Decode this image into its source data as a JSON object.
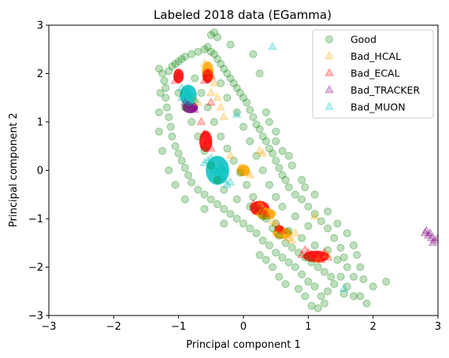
{
  "chart_data": {
    "type": "scatter",
    "title": "Labeled 2018 data (EGamma)",
    "xlabel": "Principal component 1",
    "ylabel": "Principal component 2",
    "xlim": [
      -3,
      3
    ],
    "ylim": [
      -3,
      3
    ],
    "xticks": [
      -3,
      -2,
      -1,
      0,
      1,
      2,
      3
    ],
    "yticks": [
      -3,
      -2,
      -1,
      0,
      1,
      2,
      3
    ],
    "x_tick_labels": [
      "−3",
      "−2",
      "−1",
      "0",
      "1",
      "2",
      "3"
    ],
    "y_tick_labels": [
      "−3",
      "−2",
      "−1",
      "0",
      "1",
      "2",
      "3"
    ],
    "grid": false,
    "legend_position": "top-right",
    "series": [
      {
        "name": "Good",
        "marker": "circle",
        "color": "#008000",
        "alpha": 0.25,
        "points": [
          [
            -1.15,
            2.05
          ],
          [
            -1.1,
            2.15
          ],
          [
            -1.05,
            2.2
          ],
          [
            -1.0,
            2.25
          ],
          [
            -0.95,
            2.3
          ],
          [
            -0.9,
            2.35
          ],
          [
            -0.8,
            2.4
          ],
          [
            -0.7,
            2.45
          ],
          [
            -0.6,
            2.5
          ],
          [
            -0.55,
            2.55
          ],
          [
            -0.5,
            2.45
          ],
          [
            -0.45,
            2.4
          ],
          [
            -0.4,
            2.3
          ],
          [
            -0.35,
            2.2
          ],
          [
            -0.3,
            2.1
          ],
          [
            -0.25,
            2.0
          ],
          [
            -0.2,
            1.9
          ],
          [
            -0.15,
            1.8
          ],
          [
            -0.1,
            1.7
          ],
          [
            -0.05,
            1.6
          ],
          [
            0.0,
            1.5
          ],
          [
            0.05,
            1.4
          ],
          [
            0.1,
            1.25
          ],
          [
            0.15,
            1.1
          ],
          [
            0.2,
            0.95
          ],
          [
            0.25,
            0.85
          ],
          [
            0.3,
            0.7
          ],
          [
            0.35,
            0.6
          ],
          [
            0.4,
            0.45
          ],
          [
            0.45,
            0.35
          ],
          [
            0.5,
            0.2
          ],
          [
            0.55,
            0.05
          ],
          [
            0.6,
            -0.1
          ],
          [
            0.65,
            -0.2
          ],
          [
            0.7,
            -0.35
          ],
          [
            0.8,
            -0.5
          ],
          [
            0.9,
            -0.6
          ],
          [
            1.0,
            -0.75
          ],
          [
            1.1,
            -0.9
          ],
          [
            1.2,
            -1.05
          ],
          [
            1.3,
            -1.2
          ],
          [
            1.4,
            -1.4
          ],
          [
            1.5,
            -1.6
          ],
          [
            1.55,
            -1.8
          ],
          [
            1.6,
            -2.0
          ],
          [
            1.5,
            -2.2
          ],
          [
            1.4,
            -2.35
          ],
          [
            1.3,
            -2.5
          ],
          [
            1.2,
            -2.6
          ],
          [
            1.1,
            -2.4
          ],
          [
            1.0,
            -2.3
          ],
          [
            0.9,
            -2.15
          ],
          [
            0.8,
            -2.0
          ],
          [
            0.7,
            -1.9
          ],
          [
            0.6,
            -1.8
          ],
          [
            0.5,
            -1.7
          ],
          [
            0.4,
            -1.55
          ],
          [
            0.3,
            -1.45
          ],
          [
            0.2,
            -1.3
          ],
          [
            0.1,
            -1.2
          ],
          [
            0.0,
            -1.1
          ],
          [
            -0.1,
            -1.0
          ],
          [
            -0.2,
            -0.9
          ],
          [
            -0.3,
            -0.8
          ],
          [
            -0.4,
            -0.7
          ],
          [
            -0.5,
            -0.6
          ],
          [
            -0.6,
            -0.5
          ],
          [
            -0.7,
            -0.4
          ],
          [
            -0.8,
            -0.25
          ],
          [
            -0.85,
            -0.1
          ],
          [
            -0.9,
            0.05
          ],
          [
            -0.95,
            0.2
          ],
          [
            -1.0,
            0.35
          ],
          [
            -1.05,
            0.5
          ],
          [
            -1.1,
            0.7
          ],
          [
            -1.12,
            0.9
          ],
          [
            -1.15,
            1.1
          ],
          [
            -1.18,
            1.3
          ],
          [
            -1.2,
            1.5
          ],
          [
            -1.2,
            1.7
          ],
          [
            -1.22,
            1.85
          ],
          [
            -1.25,
            2.0
          ],
          [
            -0.75,
            1.9
          ],
          [
            -0.65,
            1.6
          ],
          [
            -0.55,
            1.3
          ],
          [
            -0.45,
            1.0
          ],
          [
            -0.35,
            0.7
          ],
          [
            -0.25,
            0.45
          ],
          [
            -0.15,
            0.2
          ],
          [
            -0.05,
            -0.05
          ],
          [
            0.05,
            -0.3
          ],
          [
            0.15,
            -0.55
          ],
          [
            0.25,
            -0.8
          ],
          [
            0.35,
            -1.0
          ],
          [
            0.45,
            -1.2
          ],
          [
            0.55,
            -1.35
          ],
          [
            0.65,
            -1.5
          ],
          [
            0.75,
            -1.6
          ],
          [
            0.85,
            -1.7
          ],
          [
            0.95,
            -1.8
          ],
          [
            1.05,
            -1.9
          ],
          [
            1.15,
            -2.0
          ],
          [
            1.25,
            -2.1
          ],
          [
            1.35,
            -2.2
          ],
          [
            -0.5,
            2.8
          ],
          [
            -0.45,
            2.85
          ],
          [
            -0.4,
            2.75
          ],
          [
            -0.2,
            2.6
          ],
          [
            0.15,
            2.4
          ],
          [
            0.25,
            2.0
          ],
          [
            0.4,
            1.0
          ],
          [
            0.35,
            1.2
          ],
          [
            0.5,
            0.8
          ],
          [
            0.7,
            0.3
          ],
          [
            0.9,
            -0.2
          ],
          [
            1.1,
            -0.5
          ],
          [
            1.3,
            -0.85
          ],
          [
            1.45,
            -1.1
          ],
          [
            1.6,
            -1.3
          ],
          [
            1.7,
            -1.55
          ],
          [
            1.75,
            -1.75
          ],
          [
            1.8,
            -2.0
          ],
          [
            1.7,
            -2.2
          ],
          [
            1.85,
            -2.25
          ],
          [
            2.0,
            -2.4
          ],
          [
            2.2,
            -2.3
          ],
          [
            1.9,
            -2.75
          ],
          [
            1.8,
            -2.6
          ],
          [
            1.55,
            -2.55
          ],
          [
            1.25,
            -2.75
          ],
          [
            1.15,
            -2.85
          ],
          [
            1.05,
            -2.8
          ],
          [
            0.95,
            -2.6
          ],
          [
            0.85,
            -2.45
          ],
          [
            0.65,
            -2.35
          ],
          [
            0.55,
            -2.2
          ],
          [
            0.45,
            -2.0
          ],
          [
            0.35,
            -1.85
          ],
          [
            0.25,
            -1.75
          ],
          [
            -0.3,
            -1.1
          ],
          [
            -0.6,
            -0.8
          ],
          [
            -0.9,
            -0.6
          ],
          [
            -1.05,
            -0.3
          ],
          [
            -1.15,
            0.0
          ],
          [
            -1.25,
            0.4
          ],
          [
            -1.3,
            0.8
          ],
          [
            -1.3,
            1.2
          ],
          [
            -1.28,
            1.6
          ],
          [
            -1.3,
            2.1
          ],
          [
            -1.0,
            1.6
          ],
          [
            -0.9,
            1.3
          ],
          [
            -0.8,
            1.0
          ],
          [
            -0.7,
            0.7
          ],
          [
            -0.6,
            0.4
          ],
          [
            -0.5,
            0.1
          ],
          [
            -0.4,
            -0.2
          ],
          [
            -0.3,
            -0.4
          ],
          [
            -0.1,
            -0.6
          ],
          [
            0.1,
            -0.75
          ],
          [
            0.3,
            -0.95
          ],
          [
            0.5,
            -1.1
          ],
          [
            0.7,
            -1.25
          ],
          [
            0.9,
            -1.4
          ],
          [
            1.1,
            -1.55
          ],
          [
            1.3,
            -1.65
          ],
          [
            1.45,
            -1.85
          ],
          [
            1.6,
            -2.4
          ],
          [
            1.7,
            -2.6
          ],
          [
            0.6,
            0.4
          ],
          [
            0.75,
            0.1
          ],
          [
            0.95,
            -0.35
          ],
          [
            0.5,
            0.6
          ],
          [
            -0.35,
            1.8
          ],
          [
            -0.25,
            1.5
          ],
          [
            -0.1,
            1.2
          ],
          [
            0.0,
            0.9
          ],
          [
            0.1,
            0.6
          ],
          [
            0.2,
            0.3
          ],
          [
            0.3,
            0.0
          ],
          [
            0.4,
            -0.3
          ],
          [
            0.5,
            -0.55
          ],
          [
            0.6,
            -0.75
          ],
          [
            0.8,
            -0.95
          ],
          [
            1.0,
            -1.15
          ]
        ]
      },
      {
        "name": "Bad_HCAL",
        "marker": "triangle",
        "color": "#FFA500",
        "alpha": 0.25,
        "points": [
          [
            -0.6,
            2.2
          ],
          [
            -0.55,
            2.05
          ],
          [
            -0.5,
            1.95
          ],
          [
            -0.45,
            1.8
          ],
          [
            -0.4,
            1.5
          ],
          [
            -0.35,
            1.3
          ],
          [
            -0.3,
            1.1
          ],
          [
            -0.05,
            0.05
          ],
          [
            0.0,
            0.0
          ],
          [
            0.05,
            -0.05
          ],
          [
            0.25,
            -0.7
          ],
          [
            0.3,
            -0.8
          ],
          [
            0.35,
            -0.85
          ],
          [
            0.4,
            -0.9
          ],
          [
            0.5,
            -1.1
          ],
          [
            0.55,
            -1.2
          ],
          [
            0.6,
            -1.3
          ],
          [
            0.65,
            -1.35
          ],
          [
            0.7,
            -1.4
          ],
          [
            0.75,
            -1.45
          ],
          [
            0.8,
            -1.3
          ],
          [
            0.45,
            -1.05
          ],
          [
            -0.5,
            1.6
          ],
          [
            0.25,
            0.4
          ],
          [
            0.3,
            0.35
          ],
          [
            1.1,
            -0.95
          ],
          [
            -0.75,
            1.45
          ],
          [
            -0.7,
            1.4
          ],
          [
            -0.2,
            0.3
          ],
          [
            0.1,
            -0.1
          ],
          [
            1.15,
            -1.85
          ],
          [
            1.3,
            -1.75
          ]
        ]
      },
      {
        "name": "Bad_ECAL",
        "marker": "triangle",
        "color": "#FF0000",
        "alpha": 0.25,
        "points": [
          [
            -1.0,
            1.95
          ],
          [
            -1.05,
            1.85
          ],
          [
            -0.55,
            2.0
          ],
          [
            -0.5,
            1.95
          ],
          [
            -0.6,
            1.85
          ],
          [
            -0.65,
            1.0
          ],
          [
            -0.6,
            0.75
          ],
          [
            -0.55,
            0.6
          ],
          [
            -0.6,
            0.5
          ],
          [
            -0.5,
            0.45
          ],
          [
            0.15,
            -0.7
          ],
          [
            0.2,
            -0.75
          ],
          [
            0.25,
            -0.8
          ],
          [
            0.3,
            -0.85
          ],
          [
            0.35,
            -0.9
          ],
          [
            0.2,
            -0.85
          ],
          [
            0.55,
            -1.2
          ],
          [
            0.6,
            -1.25
          ],
          [
            1.0,
            -1.7
          ],
          [
            1.05,
            -1.75
          ],
          [
            1.1,
            -1.8
          ],
          [
            1.15,
            -1.75
          ],
          [
            1.2,
            -1.85
          ],
          [
            1.25,
            -1.7
          ],
          [
            1.3,
            -1.8
          ],
          [
            0.95,
            -1.65
          ],
          [
            -0.5,
            1.4
          ],
          [
            0.9,
            -1.75
          ]
        ]
      },
      {
        "name": "Bad_TRACKER",
        "marker": "triangle",
        "color": "#800080",
        "alpha": 0.25,
        "points": [
          [
            2.8,
            -1.3
          ],
          [
            2.85,
            -1.35
          ],
          [
            2.9,
            -1.4
          ],
          [
            2.95,
            -1.45
          ],
          [
            2.82,
            -1.25
          ],
          [
            2.88,
            -1.3
          ],
          [
            3.0,
            -1.4
          ],
          [
            2.92,
            -1.5
          ],
          [
            -0.85,
            1.35
          ],
          [
            -0.8,
            1.3
          ],
          [
            -0.9,
            1.4
          ],
          [
            -0.75,
            1.25
          ]
        ]
      },
      {
        "name": "Bad_MUON",
        "marker": "triangle",
        "color": "#00BFBF",
        "alpha": 0.25,
        "points": [
          [
            0.45,
            2.55
          ],
          [
            -0.95,
            1.7
          ],
          [
            -0.9,
            1.6
          ],
          [
            -0.85,
            1.55
          ],
          [
            -0.8,
            1.5
          ],
          [
            -0.75,
            1.45
          ],
          [
            -0.85,
            1.65
          ],
          [
            -0.95,
            1.5
          ],
          [
            -0.55,
            0.2
          ],
          [
            -0.5,
            0.1
          ],
          [
            -0.45,
            0.0
          ],
          [
            -0.4,
            -0.05
          ],
          [
            -0.35,
            -0.15
          ],
          [
            -0.3,
            -0.2
          ],
          [
            -0.25,
            -0.3
          ],
          [
            -0.6,
            0.15
          ],
          [
            -0.5,
            0.25
          ],
          [
            -0.35,
            0.05
          ],
          [
            -0.3,
            0.0
          ],
          [
            -0.2,
            -0.25
          ],
          [
            1.55,
            -2.45
          ],
          [
            -0.1,
            1.15
          ]
        ]
      }
    ],
    "blobs": [
      {
        "series": "Bad_ECAL",
        "cx": -1.0,
        "cy": 1.95,
        "rx": 0.08,
        "ry": 0.15
      },
      {
        "series": "Bad_HCAL",
        "cx": -0.55,
        "cy": 2.05,
        "rx": 0.09,
        "ry": 0.2
      },
      {
        "series": "Bad_ECAL",
        "cx": -0.55,
        "cy": 1.95,
        "rx": 0.08,
        "ry": 0.15
      },
      {
        "series": "Bad_TRACKER",
        "cx": -0.82,
        "cy": 1.3,
        "rx": 0.12,
        "ry": 0.12
      },
      {
        "series": "Bad_MUON",
        "cx": -0.85,
        "cy": 1.55,
        "rx": 0.13,
        "ry": 0.22
      },
      {
        "series": "Bad_ECAL",
        "cx": -0.58,
        "cy": 0.6,
        "rx": 0.1,
        "ry": 0.22
      },
      {
        "series": "Bad_MUON",
        "cx": -0.4,
        "cy": 0.0,
        "rx": 0.18,
        "ry": 0.3
      },
      {
        "series": "Bad_HCAL",
        "cx": 0.0,
        "cy": 0.0,
        "rx": 0.1,
        "ry": 0.12
      },
      {
        "series": "Bad_ECAL",
        "cx": 0.25,
        "cy": -0.78,
        "rx": 0.15,
        "ry": 0.15
      },
      {
        "series": "Bad_HCAL",
        "cx": 0.35,
        "cy": -0.9,
        "rx": 0.15,
        "ry": 0.12
      },
      {
        "series": "Bad_HCAL",
        "cx": 0.6,
        "cy": -1.3,
        "rx": 0.15,
        "ry": 0.12
      },
      {
        "series": "Bad_ECAL",
        "cx": 0.55,
        "cy": -1.2,
        "rx": 0.07,
        "ry": 0.07
      },
      {
        "series": "Bad_ECAL",
        "cx": 1.12,
        "cy": -1.78,
        "rx": 0.2,
        "ry": 0.12
      }
    ]
  }
}
